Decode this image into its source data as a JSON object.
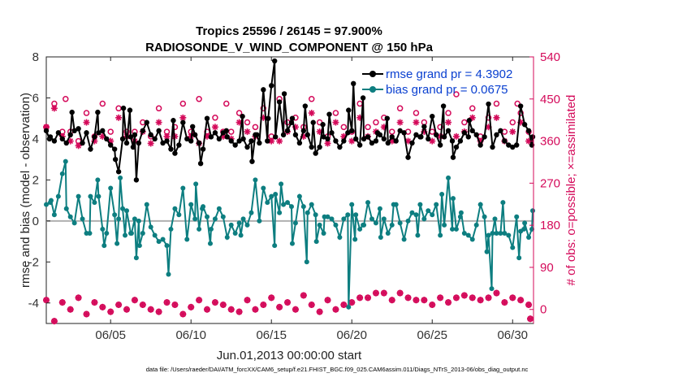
{
  "chart_data": {
    "type": "line",
    "title_line1": "Tropics 25596 / 26145 = 97.900%",
    "title_line2": "RADIOSONDE_V_WIND_COMPONENT @ 150 hPa",
    "xlabel": "Jun.01,2013 00:00:00 start",
    "ylabel_left": "rmse and bias (model - observation)",
    "ylabel_right": "# of obs: o=possible; ×=assimilated",
    "footer": "data file: /Users/raeder/DAI/ATM_forcXX/CAM6_setup/f.e21.FHIST_BGC.f09_025.CAM6assim.011/Diags_NTrS_2013-06/obs_diag_output.nc",
    "xlim": [
      1,
      31.3
    ],
    "ylim_left": [
      -5,
      8
    ],
    "ylim_right": [
      -30,
      540
    ],
    "xticks": [
      5,
      10,
      15,
      20,
      25,
      30
    ],
    "xtick_labels": [
      "06/05",
      "06/10",
      "06/15",
      "06/20",
      "06/25",
      "06/30"
    ],
    "yticks_left": [
      -4,
      -2,
      0,
      2,
      4,
      6,
      8
    ],
    "yticks_right": [
      0,
      90,
      180,
      270,
      360,
      450,
      540
    ],
    "legend": [
      {
        "label": "rmse grand pr = 4.3902",
        "color": "#000000"
      },
      {
        "label": "bias grand pr = 0.0675",
        "color": "#0d7e80"
      }
    ],
    "colors": {
      "rmse": "#000000",
      "bias": "#0d7e80",
      "obs": "#d40a5a",
      "zero": "#b0b0b0"
    },
    "series": [
      {
        "name": "rmse",
        "x_start": 1.0,
        "x_step": 0.25,
        "values": [
          4.4,
          4.1,
          3.9,
          4.3,
          4.0,
          3.8,
          4.2,
          4.4,
          4.0,
          3.8,
          4.3,
          3.5,
          4.1,
          4.3,
          4.4,
          4.0,
          3.7,
          3.5,
          3.7,
          4.0,
          3.8,
          4.1,
          4.2,
          3.8,
          4.6,
          4.8,
          4.2,
          4.0,
          3.6,
          3.8,
          3.9,
          3.5,
          3.3,
          3.7,
          4.4,
          4.0,
          3.9,
          4.2,
          3.8,
          3.5,
          3.8,
          4.1,
          4.3,
          4.0,
          4.3,
          4.1,
          3.9,
          3.7,
          3.9,
          4.0,
          3.6,
          3.9,
          4.2,
          3.8,
          4.0,
          3.9,
          4.4,
          4.1,
          4.0,
          4.2,
          4.4,
          4.8,
          4.2,
          3.8,
          4.4,
          4.2,
          3.6,
          3.3,
          3.6,
          4.1,
          4.0,
          4.3,
          3.9,
          3.6,
          3.9,
          4.3,
          4.4,
          4.0,
          3.7,
          4.0,
          4.1,
          3.8,
          3.9,
          4.2,
          4.0,
          3.8,
          4.1,
          3.9,
          4.4,
          4.3,
          4.0,
          3.8,
          4.2,
          4.1,
          4.6,
          4.0,
          4.0,
          4.2,
          3.7,
          4.1,
          4.4,
          3.9,
          3.6,
          3.9,
          4.3,
          4.1,
          4.4,
          4.2,
          4.6,
          4.1,
          3.8,
          3.6,
          4.2,
          4.4,
          3.9,
          3.7,
          3.5,
          3.7,
          4.3,
          4.7,
          4.4,
          4.1,
          3.8,
          4.2,
          4.0,
          3.8,
          3.7,
          4.0,
          3.8,
          3.9,
          3.6,
          3.8,
          4.4,
          4.2,
          4.5,
          4.3,
          4.1,
          4.3,
          4.7,
          4.4,
          4.3,
          3.8,
          3.8
        ],
        "overrides": [
          [
            1.2,
            4.0
          ],
          [
            2.6,
            5.3
          ],
          [
            3.0,
            4.5
          ],
          [
            4.2,
            5.3
          ],
          [
            5.3,
            3.0
          ],
          [
            5.5,
            2.4
          ],
          [
            5.8,
            5.5
          ],
          [
            6.2,
            5.4
          ],
          [
            6.4,
            3.6
          ],
          [
            6.6,
            2.0
          ],
          [
            7.0,
            4.4
          ],
          [
            8.0,
            4.4
          ],
          [
            8.9,
            4.9
          ],
          [
            9.5,
            4.8
          ],
          [
            10.1,
            4.6
          ],
          [
            10.6,
            2.8
          ],
          [
            11.0,
            5.0
          ],
          [
            12.2,
            4.4
          ],
          [
            13.2,
            5.1
          ],
          [
            13.8,
            2.9
          ],
          [
            14.1,
            4.2
          ],
          [
            14.5,
            6.4
          ],
          [
            14.8,
            5.0
          ],
          [
            15.0,
            6.6
          ],
          [
            15.2,
            7.8
          ],
          [
            15.5,
            5.8
          ],
          [
            15.8,
            6.2
          ],
          [
            16.3,
            5.0
          ],
          [
            17.1,
            5.6
          ],
          [
            17.6,
            4.8
          ],
          [
            18.2,
            4.7
          ],
          [
            18.6,
            5.2
          ],
          [
            19.8,
            5.4
          ],
          [
            20.1,
            6.7
          ],
          [
            20.7,
            6.0
          ],
          [
            21.6,
            4.3
          ],
          [
            22.2,
            5.0
          ],
          [
            23.5,
            3.1
          ],
          [
            24.3,
            4.1
          ],
          [
            25.0,
            5.1
          ],
          [
            25.7,
            5.6
          ],
          [
            26.3,
            3.1
          ],
          [
            27.3,
            4.9
          ],
          [
            28.0,
            3.7
          ],
          [
            28.5,
            5.7
          ],
          [
            30.0,
            3.6
          ],
          [
            30.5,
            5.6
          ],
          [
            31.2,
            3.7
          ]
        ]
      },
      {
        "name": "bias",
        "x_start": 1.0,
        "x_step": 0.25,
        "values": [
          0.8,
          0.9,
          0.3,
          1.2,
          2.3,
          0.6,
          0.2,
          -0.1,
          1.2,
          0.1,
          -0.6,
          1.2,
          0.9,
          1.2,
          -0.4,
          -0.6,
          -1.2,
          0.3,
          0.1,
          0.6,
          0.5,
          -0.6,
          0.1,
          0.0,
          -0.6,
          0.8,
          -0.3,
          -0.7,
          0.1,
          -0.9,
          -1.2,
          -0.4,
          -0.4,
          0.3,
          -0.6,
          -0.9,
          -0.3,
          0.1,
          -0.4,
          0.7,
          0.2,
          -0.4,
          0.1,
          0.6,
          0.2,
          -0.8,
          -0.2,
          -0.6,
          -0.1,
          0.1,
          -0.2,
          0.4,
          -0.6,
          0.0,
          -0.3,
          0.9,
          0.6,
          1.3,
          0.4,
          0.8,
          1.1,
          0.7,
          -0.1,
          1.2,
          0.7,
          0.4,
          0.8,
          0.3,
          -0.2,
          -0.6,
          0.2,
          0.1,
          -0.2,
          -0.8,
          0.1,
          0.3,
          0.8,
          0.3,
          -0.4,
          -0.2,
          0.4,
          0.1,
          -0.1,
          0.6,
          0.1,
          -0.6,
          -0.2,
          0.8,
          -0.1,
          -0.9,
          0.0,
          0.4,
          0.3,
          0.8,
          0.1,
          0.5,
          0.3,
          0.8,
          -0.7,
          -0.2,
          -0.6,
          -0.4,
          -0.4,
          0.2,
          -0.6,
          -0.7,
          -0.1,
          -0.2,
          0.8,
          0.2,
          -0.7,
          -0.6,
          -0.6,
          -0.6,
          -0.6,
          -0.7,
          -0.5,
          0.2,
          -0.5,
          -0.1,
          0.3,
          0.5,
          0.2,
          -0.2,
          -0.4,
          0.4,
          0.2,
          0.1,
          0.6,
          0.2,
          -0.4,
          -0.3,
          0.5,
          0.4,
          0.2,
          0.5,
          -0.1,
          -0.2,
          -0.4,
          0.6,
          -0.5,
          -0.8,
          -0.4
        ],
        "overrides": [
          [
            1.3,
            1.0
          ],
          [
            2.2,
            2.9
          ],
          [
            3.7,
            -0.6
          ],
          [
            4.2,
            2.0
          ],
          [
            4.6,
            -1.2
          ],
          [
            5.0,
            1.6
          ],
          [
            5.4,
            -1.1
          ],
          [
            5.6,
            2.1
          ],
          [
            5.9,
            -0.7
          ],
          [
            6.3,
            -0.6
          ],
          [
            6.6,
            -1.8
          ],
          [
            6.8,
            -1.2
          ],
          [
            8.0,
            -1.0
          ],
          [
            8.6,
            -2.6
          ],
          [
            9.0,
            0.6
          ],
          [
            9.5,
            1.6
          ],
          [
            10.0,
            0.8
          ],
          [
            10.3,
            1.8
          ],
          [
            10.7,
            0.6
          ],
          [
            11.2,
            -1.1
          ],
          [
            13.1,
            -0.7
          ],
          [
            14.0,
            2.0
          ],
          [
            14.5,
            1.6
          ],
          [
            15.0,
            1.2
          ],
          [
            15.2,
            -1.2
          ],
          [
            15.6,
            1.8
          ],
          [
            16.0,
            0.9
          ],
          [
            16.3,
            -1.1
          ],
          [
            17.2,
            -2.0
          ],
          [
            17.8,
            -1.0
          ],
          [
            18.3,
            0.2
          ],
          [
            19.8,
            -4.2
          ],
          [
            20.2,
            -0.9
          ],
          [
            20.7,
            -0.2
          ],
          [
            21.0,
            0.9
          ],
          [
            21.8,
            -0.8
          ],
          [
            22.6,
            0.8
          ],
          [
            24.1,
            -0.7
          ],
          [
            25.6,
            1.3
          ],
          [
            26.0,
            2.1
          ],
          [
            26.3,
            1.1
          ],
          [
            26.8,
            0.4
          ],
          [
            27.5,
            -0.9
          ],
          [
            28.4,
            -1.5
          ],
          [
            28.7,
            -3.3
          ],
          [
            28.9,
            0.1
          ],
          [
            29.4,
            0.9
          ],
          [
            30.0,
            -1.3
          ],
          [
            30.4,
            -1.8
          ],
          [
            30.7,
            -0.4
          ],
          [
            31.0,
            -0.8
          ],
          [
            31.2,
            -0.4
          ]
        ]
      },
      {
        "name": "obs_possible",
        "x_start": 1.0,
        "x_step": 0.5,
        "values": [
          390,
          440,
          380,
          380,
          360,
          420,
          370,
          380,
          380,
          430,
          380,
          380,
          400,
          370,
          430,
          380,
          390,
          440,
          380,
          370,
          380,
          410,
          380,
          380,
          420,
          400,
          390,
          430,
          370,
          380,
          400,
          410,
          390,
          450,
          400,
          370,
          420,
          390,
          380,
          440,
          390,
          400,
          410,
          380,
          430,
          380,
          420,
          400,
          380,
          390,
          420,
          390,
          400,
          430,
          370,
          410,
          440,
          380,
          400,
          420,
          380
        ],
        "overrides": [
          [
            2.2,
            450
          ],
          [
            4.5,
            440
          ],
          [
            10.5,
            450
          ],
          [
            12.2,
            440
          ],
          [
            15.5,
            450
          ],
          [
            26.5,
            460
          ],
          [
            30.3,
            440
          ]
        ]
      },
      {
        "name": "obs_assimilated",
        "x_start": 1.0,
        "x_step": 0.5,
        "values": [
          390,
          430,
          370,
          360,
          350,
          400,
          360,
          370,
          360,
          410,
          370,
          360,
          380,
          355,
          400,
          370,
          370,
          410,
          370,
          355,
          370,
          390,
          370,
          365,
          400,
          380,
          370,
          410,
          360,
          360,
          380,
          390,
          370,
          420,
          380,
          355,
          400,
          370,
          360,
          410,
          370,
          380,
          390,
          360,
          400,
          360,
          400,
          380,
          360,
          370,
          400,
          370,
          380,
          410,
          360,
          390,
          410,
          360,
          380,
          400,
          360
        ]
      },
      {
        "name": "obs_daily",
        "x_start": 1.0,
        "x_step": 0.5,
        "values": [
          20,
          -25,
          15,
          0,
          25,
          -10,
          15,
          5,
          -5,
          10,
          0,
          20,
          10,
          0,
          -5,
          15,
          10,
          -10,
          5,
          20,
          0,
          15,
          10,
          0,
          -5,
          20,
          0,
          10,
          25,
          5,
          15,
          0,
          30,
          10,
          -5,
          20,
          0,
          10,
          15,
          25,
          25,
          35,
          35,
          20,
          35,
          25,
          20,
          20,
          10,
          25,
          15,
          25,
          30,
          25,
          20,
          25,
          35,
          15,
          25,
          20,
          10
        ],
        "overrides": [
          [
            31.1,
            -20
          ]
        ]
      }
    ]
  }
}
